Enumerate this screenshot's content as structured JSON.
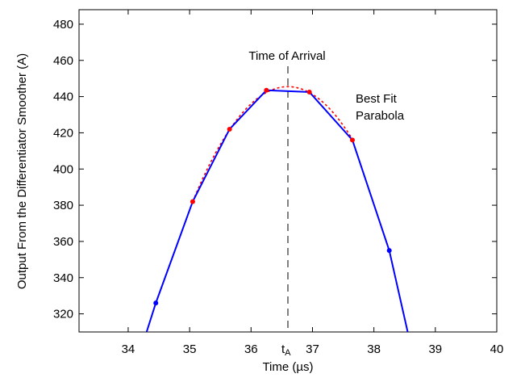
{
  "chart_data": {
    "type": "line",
    "title": "",
    "xlabel": "Time (µs)",
    "ylabel": "Output From the Differentiator Smoother (A)",
    "xlim": [
      33.2,
      40
    ],
    "ylim": [
      310,
      488
    ],
    "xticks": [
      34,
      35,
      36,
      37,
      38,
      39,
      40
    ],
    "yticks": [
      320,
      340,
      360,
      380,
      400,
      420,
      440,
      460,
      480
    ],
    "grid": false,
    "legend": "none",
    "series": [
      {
        "kind": "solid-line",
        "color": "#0000ff",
        "x": [
          34.3,
          34.45,
          35.05,
          35.65,
          36.25,
          36.95,
          37.65,
          38.25,
          38.55
        ],
        "y": [
          310,
          326,
          382,
          422,
          443.5,
          442.5,
          416,
          355,
          310
        ]
      },
      {
        "kind": "blue-markers",
        "color": "#0000ff",
        "x": [
          34.45,
          38.25
        ],
        "y": [
          326,
          355
        ]
      },
      {
        "kind": "dotted-parabola",
        "color": "#ff0000",
        "vertex_x": 36.6,
        "vertex_y": 445.5,
        "x_range": [
          35.05,
          37.65
        ]
      },
      {
        "kind": "red-markers",
        "color": "#ff0000",
        "x": [
          35.05,
          35.65,
          36.25,
          36.95,
          37.65
        ],
        "y": [
          382,
          422,
          443.5,
          442.5,
          416
        ]
      }
    ],
    "vline": {
      "x": 36.6,
      "color": "#808080",
      "label_main": "t",
      "label_sub": "A"
    },
    "annotations": {
      "toa": "Time of Arrival",
      "fit_line1": "Best Fit",
      "fit_line2": "Parabola"
    },
    "colors": {
      "axes": "#000000",
      "line": "#0000ff",
      "fit": "#ff0000",
      "vline": "#808080"
    }
  }
}
